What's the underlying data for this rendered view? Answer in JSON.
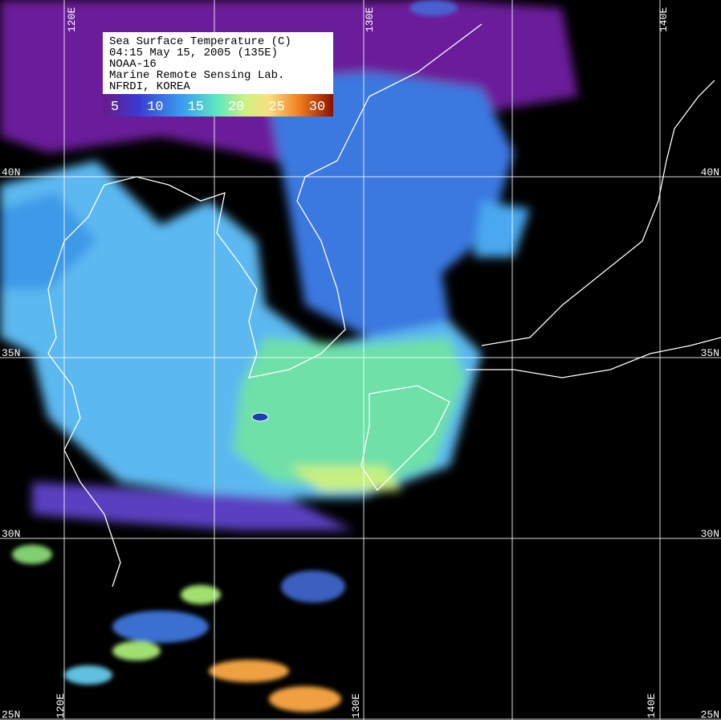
{
  "legend": {
    "lines": [
      "Sea Surface Temperature (C)",
      "04:15 May 15, 2005 (135E)",
      "NOAA-16",
      "Marine Remote Sensing Lab.",
      "NFRDI, KOREA"
    ],
    "colorbar_ticks": [
      5,
      10,
      15,
      20,
      25,
      30
    ]
  },
  "grid": {
    "lat_labels": [
      "40N",
      "35N",
      "30N",
      "25N"
    ],
    "lon_labels": [
      "120E",
      "130E",
      "140E"
    ]
  }
}
